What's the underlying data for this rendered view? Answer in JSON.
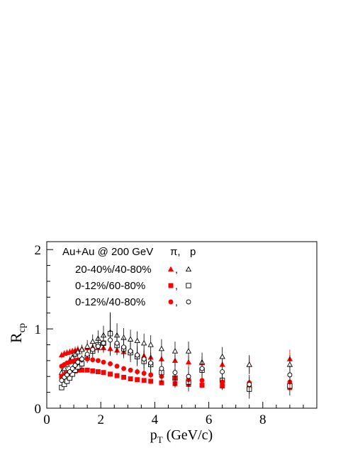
{
  "chart_data": {
    "type": "scatter",
    "xlabel_main": "p",
    "xlabel_sub": "T",
    "xlabel_unit": " (GeV/c)",
    "ylabel_main": "R",
    "ylabel_sub": "cp",
    "xlim": [
      0,
      10
    ],
    "ylim": [
      0,
      2.1
    ],
    "xticks": [
      0,
      2,
      4,
      6,
      8
    ],
    "yticks": [
      0,
      1,
      2
    ],
    "grid": false,
    "legend": {
      "title": "Au+Au @ 200 GeV",
      "col_pi": "π,",
      "col_p": "p",
      "comma": ",",
      "rows": [
        "20-40%/40-80%",
        "0-12%/60-80%",
        "0-12%/40-80%"
      ]
    },
    "colors": {
      "pi": "#ff0000",
      "p": "#000000"
    },
    "series": [
      {
        "name": "20-40%/40-80% π",
        "marker": "triangle-filled",
        "color": "#ff0000",
        "x": [
          0.55,
          0.65,
          0.75,
          0.85,
          0.95,
          1.05,
          1.15,
          1.3,
          1.5,
          1.7,
          1.9,
          2.1,
          2.35,
          2.6,
          2.85,
          3.1,
          3.35,
          3.6,
          3.85,
          4.25,
          4.75,
          5.25,
          5.75,
          6.5,
          7.5,
          9.0
        ],
        "y": [
          0.67,
          0.69,
          0.7,
          0.71,
          0.72,
          0.73,
          0.74,
          0.75,
          0.76,
          0.77,
          0.76,
          0.76,
          0.75,
          0.73,
          0.71,
          0.7,
          0.68,
          0.66,
          0.64,
          0.62,
          0.6,
          0.58,
          0.57,
          0.55,
          0.55,
          0.62
        ],
        "err": [
          0.04,
          0.04,
          0.04,
          0.04,
          0.04,
          0.05,
          0.05,
          0.05,
          0.06,
          0.06,
          0.06,
          0.06,
          0.06,
          0.06,
          0.06,
          0.06,
          0.06,
          0.06,
          0.06,
          0.07,
          0.07,
          0.08,
          0.08,
          0.09,
          0.1,
          0.12
        ]
      },
      {
        "name": "20-40%/40-80% p",
        "marker": "triangle-open",
        "color": "#000000",
        "x": [
          0.55,
          0.65,
          0.75,
          0.85,
          0.95,
          1.05,
          1.15,
          1.3,
          1.5,
          1.7,
          1.9,
          2.1,
          2.35,
          2.6,
          2.85,
          3.1,
          3.35,
          3.6,
          3.85,
          4.25,
          4.75,
          5.25,
          5.75,
          6.5,
          7.5,
          9.0
        ],
        "y": [
          0.45,
          0.5,
          0.55,
          0.6,
          0.64,
          0.68,
          0.71,
          0.74,
          0.78,
          0.84,
          0.88,
          0.92,
          0.96,
          0.92,
          0.89,
          0.87,
          0.85,
          0.82,
          0.8,
          0.75,
          0.72,
          0.72,
          0.58,
          0.65,
          0.55,
          0.55
        ],
        "err": [
          0.05,
          0.05,
          0.05,
          0.05,
          0.06,
          0.06,
          0.06,
          0.06,
          0.08,
          0.09,
          0.1,
          0.12,
          0.25,
          0.15,
          0.12,
          0.12,
          0.12,
          0.12,
          0.12,
          0.12,
          0.12,
          0.12,
          0.12,
          0.12,
          0.12,
          0.12
        ]
      },
      {
        "name": "0-12%/60-80% π",
        "marker": "square-filled",
        "color": "#ff0000",
        "x": [
          0.55,
          0.65,
          0.75,
          0.85,
          0.95,
          1.05,
          1.15,
          1.3,
          1.5,
          1.7,
          1.9,
          2.1,
          2.35,
          2.6,
          2.85,
          3.1,
          3.35,
          3.6,
          3.85,
          4.25,
          4.75,
          5.25,
          5.75,
          6.5,
          7.5,
          9.0
        ],
        "y": [
          0.4,
          0.42,
          0.44,
          0.45,
          0.46,
          0.47,
          0.48,
          0.48,
          0.48,
          0.47,
          0.46,
          0.45,
          0.43,
          0.41,
          0.39,
          0.37,
          0.36,
          0.35,
          0.34,
          0.32,
          0.31,
          0.3,
          0.29,
          0.28,
          0.27,
          0.26
        ],
        "err": [
          0.02,
          0.02,
          0.02,
          0.02,
          0.02,
          0.02,
          0.02,
          0.02,
          0.02,
          0.02,
          0.02,
          0.02,
          0.02,
          0.02,
          0.02,
          0.02,
          0.02,
          0.02,
          0.02,
          0.02,
          0.03,
          0.03,
          0.03,
          0.03,
          0.03,
          0.04
        ]
      },
      {
        "name": "0-12%/60-80% p",
        "marker": "square-open",
        "color": "#000000",
        "x": [
          0.55,
          0.65,
          0.75,
          0.85,
          0.95,
          1.05,
          1.15,
          1.3,
          1.5,
          1.7,
          1.9,
          2.1,
          2.35,
          2.6,
          2.85,
          3.1,
          3.35,
          3.6,
          3.85,
          4.25,
          4.75,
          5.25,
          5.75,
          6.5,
          7.5,
          9.0
        ],
        "y": [
          0.26,
          0.3,
          0.34,
          0.38,
          0.43,
          0.48,
          0.52,
          0.56,
          0.64,
          0.72,
          0.8,
          0.82,
          0.94,
          0.79,
          0.75,
          0.7,
          0.65,
          0.59,
          0.55,
          0.45,
          0.38,
          0.33,
          0.48,
          0.35,
          0.24,
          0.28
        ],
        "err": [
          0.03,
          0.03,
          0.03,
          0.03,
          0.04,
          0.04,
          0.05,
          0.06,
          0.07,
          0.08,
          0.1,
          0.12,
          0.26,
          0.12,
          0.12,
          0.12,
          0.12,
          0.12,
          0.12,
          0.12,
          0.12,
          0.12,
          0.12,
          0.12,
          0.12,
          0.12
        ]
      },
      {
        "name": "0-12%/40-80% π",
        "marker": "circle-filled",
        "color": "#ff0000",
        "x": [
          0.55,
          0.65,
          0.75,
          0.85,
          0.95,
          1.05,
          1.15,
          1.3,
          1.5,
          1.7,
          1.9,
          2.1,
          2.35,
          2.6,
          2.85,
          3.1,
          3.35,
          3.6,
          3.85,
          4.25,
          4.75,
          5.25,
          5.75,
          6.5,
          7.5,
          9.0
        ],
        "y": [
          0.53,
          0.55,
          0.57,
          0.58,
          0.59,
          0.6,
          0.61,
          0.62,
          0.62,
          0.61,
          0.6,
          0.58,
          0.56,
          0.53,
          0.5,
          0.48,
          0.46,
          0.44,
          0.42,
          0.4,
          0.38,
          0.36,
          0.35,
          0.33,
          0.32,
          0.33
        ],
        "err": [
          0.03,
          0.03,
          0.03,
          0.03,
          0.03,
          0.03,
          0.03,
          0.03,
          0.03,
          0.03,
          0.03,
          0.03,
          0.03,
          0.03,
          0.03,
          0.03,
          0.04,
          0.04,
          0.04,
          0.04,
          0.05,
          0.05,
          0.05,
          0.06,
          0.07,
          0.08
        ]
      },
      {
        "name": "0-12%/40-80% p",
        "marker": "circle-open",
        "color": "#000000",
        "x": [
          0.55,
          0.65,
          0.75,
          0.85,
          0.95,
          1.05,
          1.15,
          1.3,
          1.5,
          1.7,
          1.9,
          2.1,
          2.35,
          2.6,
          2.85,
          3.1,
          3.35,
          3.6,
          3.85,
          4.25,
          4.75,
          5.25,
          5.75,
          6.5,
          7.5,
          9.0
        ],
        "y": [
          0.35,
          0.39,
          0.42,
          0.46,
          0.5,
          0.54,
          0.58,
          0.62,
          0.68,
          0.74,
          0.78,
          0.82,
          0.86,
          0.82,
          0.77,
          0.72,
          0.67,
          0.62,
          0.57,
          0.5,
          0.45,
          0.4,
          0.5,
          0.46,
          0.3,
          0.42
        ],
        "err": [
          0.03,
          0.03,
          0.03,
          0.03,
          0.04,
          0.04,
          0.05,
          0.05,
          0.06,
          0.07,
          0.08,
          0.1,
          0.2,
          0.12,
          0.12,
          0.12,
          0.12,
          0.12,
          0.12,
          0.12,
          0.12,
          0.12,
          0.12,
          0.12,
          0.12,
          0.12
        ]
      }
    ]
  }
}
